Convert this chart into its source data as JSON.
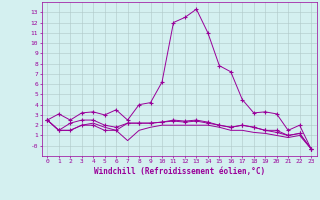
{
  "x": [
    0,
    1,
    2,
    3,
    4,
    5,
    6,
    7,
    8,
    9,
    10,
    11,
    12,
    13,
    14,
    15,
    16,
    17,
    18,
    19,
    20,
    21,
    22,
    23
  ],
  "line1": [
    2.5,
    3.1,
    2.5,
    3.2,
    3.3,
    3.0,
    3.5,
    2.5,
    4.0,
    4.2,
    6.2,
    12.0,
    12.5,
    13.3,
    11.0,
    7.8,
    7.2,
    4.5,
    3.2,
    3.3,
    3.1,
    1.5,
    2.0,
    -0.3
  ],
  "line2": [
    2.5,
    1.5,
    2.2,
    2.5,
    2.5,
    2.0,
    1.8,
    2.2,
    2.2,
    2.2,
    2.3,
    2.5,
    2.4,
    2.5,
    2.3,
    2.0,
    1.8,
    2.0,
    1.8,
    1.5,
    1.5,
    1.0,
    1.2,
    -0.3
  ],
  "line3": [
    2.5,
    1.5,
    1.5,
    2.0,
    2.2,
    1.8,
    1.5,
    0.5,
    1.5,
    1.8,
    2.0,
    2.0,
    2.0,
    2.0,
    2.0,
    1.8,
    1.5,
    1.5,
    1.3,
    1.2,
    1.0,
    0.8,
    1.0,
    -0.3
  ],
  "line4": [
    2.5,
    1.5,
    1.5,
    2.0,
    2.0,
    1.5,
    1.5,
    2.2,
    2.2,
    2.2,
    2.3,
    2.4,
    2.3,
    2.4,
    2.2,
    2.0,
    1.8,
    2.0,
    1.8,
    1.5,
    1.3,
    1.0,
    1.2,
    -0.3
  ],
  "line_color": "#990099",
  "bg_color": "#d4f0f0",
  "grid_color": "#b0c8c8",
  "xlabel": "Windchill (Refroidissement éolien,°C)",
  "ylim": [
    -1,
    14
  ],
  "xlim": [
    -0.5,
    23.5
  ],
  "ytick_labels": [
    "13",
    "12",
    "11",
    "10",
    "9",
    "8",
    "7",
    "6",
    "5",
    "4",
    "3",
    "2",
    "1",
    "-0"
  ],
  "ytick_vals": [
    13,
    12,
    11,
    10,
    9,
    8,
    7,
    6,
    5,
    4,
    3,
    2,
    1,
    0
  ],
  "xtick_vals": [
    0,
    1,
    2,
    3,
    4,
    5,
    6,
    7,
    8,
    9,
    10,
    11,
    12,
    13,
    14,
    15,
    16,
    17,
    18,
    19,
    20,
    21,
    22,
    23
  ],
  "xtick_labels": [
    "0",
    "1",
    "2",
    "3",
    "4",
    "5",
    "6",
    "7",
    "8",
    "9",
    "10",
    "11",
    "12",
    "13",
    "14",
    "15",
    "16",
    "17",
    "18",
    "19",
    "20",
    "21",
    "22",
    "23"
  ]
}
